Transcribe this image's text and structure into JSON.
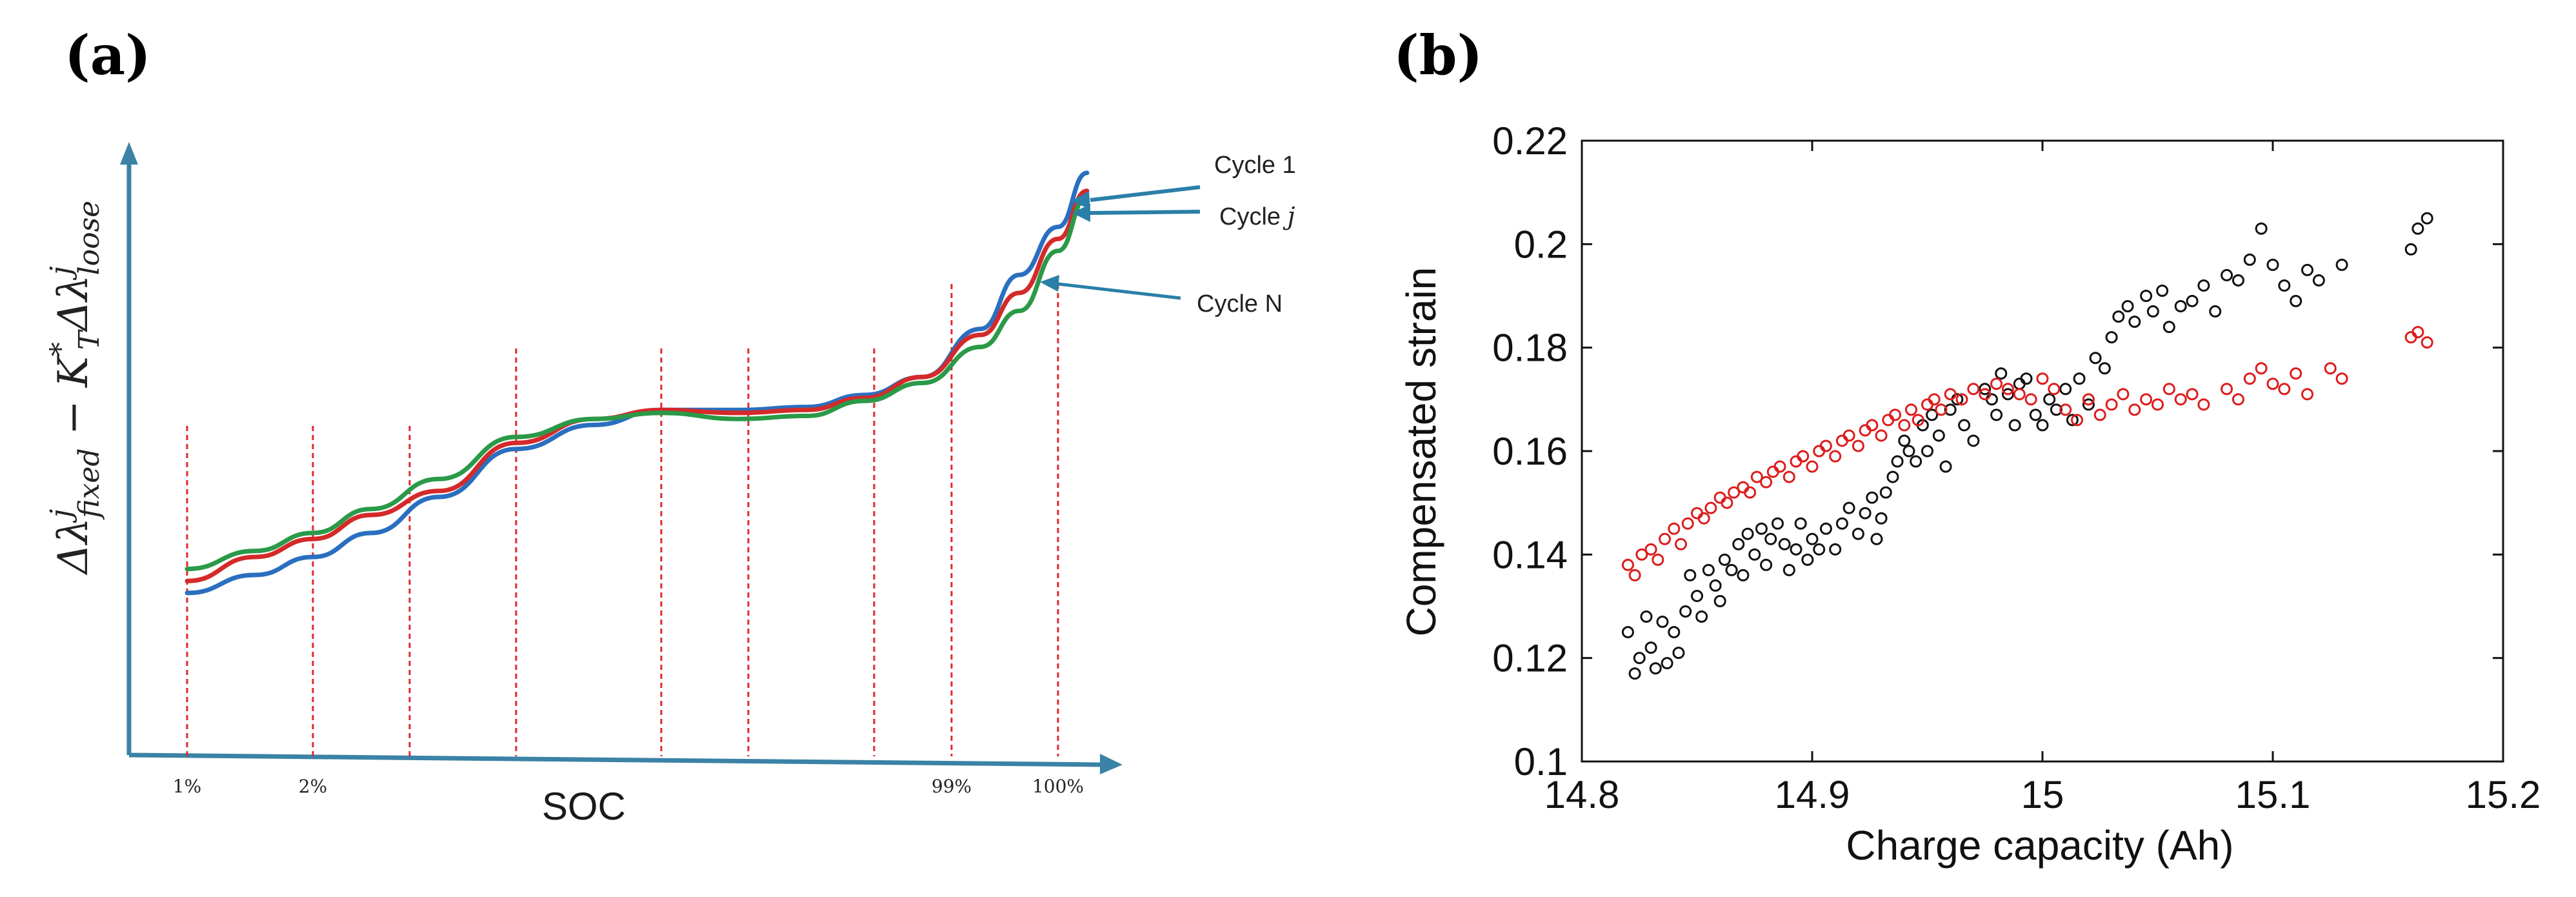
{
  "chart_data": [
    {
      "panel": "(a)",
      "type": "line",
      "xlabel": "SOC",
      "ylabel": "Δλfixed^j − K_T*Δλloose^j",
      "ylabel_parts": [
        "Δλ",
        "j",
        "fixed",
        " − K",
        "*",
        "T",
        "Δλ",
        "j",
        "loose"
      ],
      "soc_ticks": [
        {
          "label": "1%",
          "x": 0.06
        },
        {
          "label": "2%",
          "x": 0.19
        },
        {
          "label": "99%",
          "x": 0.85
        },
        {
          "label": "100%",
          "x": 0.96
        }
      ],
      "grid_x": [
        0.06,
        0.19,
        0.29,
        0.4,
        0.55,
        0.64,
        0.77,
        0.85,
        0.96
      ],
      "xlim": [
        0,
        1
      ],
      "ylim": [
        0,
        1
      ],
      "series": [
        {
          "name": "Cycle 1",
          "color": "#2a6fbf",
          "x": [
            0.06,
            0.13,
            0.19,
            0.25,
            0.32,
            0.4,
            0.48,
            0.55,
            0.63,
            0.7,
            0.76,
            0.82,
            0.88,
            0.92,
            0.96,
            0.99
          ],
          "y": [
            0.27,
            0.3,
            0.33,
            0.37,
            0.43,
            0.51,
            0.55,
            0.575,
            0.575,
            0.58,
            0.6,
            0.63,
            0.71,
            0.8,
            0.88,
            0.97
          ]
        },
        {
          "name": "Cycle j",
          "color": "#d42a2a",
          "x": [
            0.06,
            0.13,
            0.19,
            0.25,
            0.32,
            0.4,
            0.48,
            0.55,
            0.63,
            0.7,
            0.76,
            0.82,
            0.88,
            0.92,
            0.96,
            0.99
          ],
          "y": [
            0.29,
            0.33,
            0.36,
            0.4,
            0.44,
            0.52,
            0.56,
            0.575,
            0.57,
            0.575,
            0.595,
            0.63,
            0.7,
            0.77,
            0.86,
            0.94
          ]
        },
        {
          "name": "Cycle N",
          "color": "#2a9a48",
          "x": [
            0.06,
            0.13,
            0.19,
            0.25,
            0.32,
            0.4,
            0.48,
            0.55,
            0.63,
            0.7,
            0.76,
            0.82,
            0.88,
            0.92,
            0.96,
            0.99
          ],
          "y": [
            0.31,
            0.34,
            0.37,
            0.41,
            0.46,
            0.53,
            0.56,
            0.57,
            0.56,
            0.565,
            0.59,
            0.62,
            0.68,
            0.74,
            0.84,
            0.93
          ]
        }
      ],
      "annotations": [
        {
          "text": "Cycle 1",
          "target_series": "Cycle 1"
        },
        {
          "text": "Cycle ",
          "italic_suffix": "j",
          "target_series": "Cycle j"
        },
        {
          "text": "Cycle N",
          "target_series": "Cycle N"
        }
      ]
    },
    {
      "panel": "(b)",
      "type": "scatter",
      "xlabel": "Charge capacity (Ah)",
      "ylabel": "Compensated strain",
      "xlim": [
        14.8,
        15.2
      ],
      "ylim": [
        0.1,
        0.22
      ],
      "xticks": [
        14.8,
        14.9,
        15,
        15.1,
        15.2
      ],
      "xtick_labels": [
        "14.8",
        "14.9",
        "15",
        "15.1",
        "15.2"
      ],
      "yticks": [
        0.1,
        0.12,
        0.14,
        0.16,
        0.18,
        0.2,
        0.22
      ],
      "ytick_labels": [
        "0.1",
        "0.12",
        "0.14",
        "0.16",
        "0.18",
        "0.2",
        "0.22"
      ],
      "series": [
        {
          "name": "black",
          "color": "#111111",
          "marker": "circle-open",
          "points": [
            [
              14.82,
              0.125
            ],
            [
              14.823,
              0.117
            ],
            [
              14.825,
              0.12
            ],
            [
              14.828,
              0.128
            ],
            [
              14.83,
              0.122
            ],
            [
              14.832,
              0.118
            ],
            [
              14.835,
              0.127
            ],
            [
              14.837,
              0.119
            ],
            [
              14.84,
              0.125
            ],
            [
              14.842,
              0.121
            ],
            [
              14.845,
              0.129
            ],
            [
              14.847,
              0.136
            ],
            [
              14.85,
              0.132
            ],
            [
              14.852,
              0.128
            ],
            [
              14.855,
              0.137
            ],
            [
              14.858,
              0.134
            ],
            [
              14.86,
              0.131
            ],
            [
              14.862,
              0.139
            ],
            [
              14.865,
              0.137
            ],
            [
              14.868,
              0.142
            ],
            [
              14.87,
              0.136
            ],
            [
              14.872,
              0.144
            ],
            [
              14.875,
              0.14
            ],
            [
              14.878,
              0.145
            ],
            [
              14.88,
              0.138
            ],
            [
              14.882,
              0.143
            ],
            [
              14.885,
              0.146
            ],
            [
              14.888,
              0.142
            ],
            [
              14.89,
              0.137
            ],
            [
              14.893,
              0.141
            ],
            [
              14.895,
              0.146
            ],
            [
              14.898,
              0.139
            ],
            [
              14.9,
              0.143
            ],
            [
              14.903,
              0.141
            ],
            [
              14.906,
              0.145
            ],
            [
              14.91,
              0.141
            ],
            [
              14.913,
              0.146
            ],
            [
              14.916,
              0.149
            ],
            [
              14.92,
              0.144
            ],
            [
              14.923,
              0.148
            ],
            [
              14.926,
              0.151
            ],
            [
              14.928,
              0.143
            ],
            [
              14.93,
              0.147
            ],
            [
              14.932,
              0.152
            ],
            [
              14.935,
              0.155
            ],
            [
              14.937,
              0.158
            ],
            [
              14.94,
              0.162
            ],
            [
              14.942,
              0.16
            ],
            [
              14.945,
              0.158
            ],
            [
              14.948,
              0.165
            ],
            [
              14.95,
              0.16
            ],
            [
              14.952,
              0.167
            ],
            [
              14.955,
              0.163
            ],
            [
              14.958,
              0.157
            ],
            [
              14.96,
              0.168
            ],
            [
              14.963,
              0.17
            ],
            [
              14.966,
              0.165
            ],
            [
              14.97,
              0.162
            ],
            [
              14.975,
              0.172
            ],
            [
              14.978,
              0.17
            ],
            [
              14.98,
              0.167
            ],
            [
              14.982,
              0.175
            ],
            [
              14.985,
              0.171
            ],
            [
              14.988,
              0.165
            ],
            [
              14.99,
              0.173
            ],
            [
              14.993,
              0.174
            ],
            [
              14.997,
              0.167
            ],
            [
              15.0,
              0.165
            ],
            [
              15.003,
              0.17
            ],
            [
              15.006,
              0.168
            ],
            [
              15.01,
              0.172
            ],
            [
              15.013,
              0.166
            ],
            [
              15.016,
              0.174
            ],
            [
              15.02,
              0.169
            ],
            [
              15.023,
              0.178
            ],
            [
              15.027,
              0.176
            ],
            [
              15.03,
              0.182
            ],
            [
              15.033,
              0.186
            ],
            [
              15.037,
              0.188
            ],
            [
              15.04,
              0.185
            ],
            [
              15.045,
              0.19
            ],
            [
              15.048,
              0.187
            ],
            [
              15.052,
              0.191
            ],
            [
              15.055,
              0.184
            ],
            [
              15.06,
              0.188
            ],
            [
              15.065,
              0.189
            ],
            [
              15.07,
              0.192
            ],
            [
              15.075,
              0.187
            ],
            [
              15.08,
              0.194
            ],
            [
              15.085,
              0.193
            ],
            [
              15.09,
              0.197
            ],
            [
              15.095,
              0.203
            ],
            [
              15.1,
              0.196
            ],
            [
              15.105,
              0.192
            ],
            [
              15.11,
              0.189
            ],
            [
              15.115,
              0.195
            ],
            [
              15.12,
              0.193
            ],
            [
              15.13,
              0.196
            ],
            [
              15.16,
              0.199
            ],
            [
              15.163,
              0.203
            ],
            [
              15.167,
              0.205
            ]
          ]
        },
        {
          "name": "red",
          "color": "#dd1c1c",
          "marker": "circle-open",
          "points": [
            [
              14.82,
              0.138
            ],
            [
              14.823,
              0.136
            ],
            [
              14.826,
              0.14
            ],
            [
              14.83,
              0.141
            ],
            [
              14.833,
              0.139
            ],
            [
              14.836,
              0.143
            ],
            [
              14.84,
              0.145
            ],
            [
              14.843,
              0.142
            ],
            [
              14.846,
              0.146
            ],
            [
              14.85,
              0.148
            ],
            [
              14.853,
              0.147
            ],
            [
              14.856,
              0.149
            ],
            [
              14.86,
              0.151
            ],
            [
              14.863,
              0.15
            ],
            [
              14.866,
              0.152
            ],
            [
              14.87,
              0.153
            ],
            [
              14.873,
              0.152
            ],
            [
              14.876,
              0.155
            ],
            [
              14.88,
              0.154
            ],
            [
              14.883,
              0.156
            ],
            [
              14.886,
              0.157
            ],
            [
              14.89,
              0.155
            ],
            [
              14.893,
              0.158
            ],
            [
              14.896,
              0.159
            ],
            [
              14.9,
              0.157
            ],
            [
              14.903,
              0.16
            ],
            [
              14.906,
              0.161
            ],
            [
              14.91,
              0.159
            ],
            [
              14.913,
              0.162
            ],
            [
              14.916,
              0.163
            ],
            [
              14.92,
              0.161
            ],
            [
              14.923,
              0.164
            ],
            [
              14.926,
              0.165
            ],
            [
              14.93,
              0.163
            ],
            [
              14.933,
              0.166
            ],
            [
              14.936,
              0.167
            ],
            [
              14.94,
              0.165
            ],
            [
              14.943,
              0.168
            ],
            [
              14.946,
              0.166
            ],
            [
              14.95,
              0.169
            ],
            [
              14.953,
              0.17
            ],
            [
              14.956,
              0.168
            ],
            [
              14.96,
              0.171
            ],
            [
              14.965,
              0.17
            ],
            [
              14.97,
              0.172
            ],
            [
              14.975,
              0.171
            ],
            [
              14.98,
              0.173
            ],
            [
              14.985,
              0.172
            ],
            [
              14.99,
              0.171
            ],
            [
              14.995,
              0.17
            ],
            [
              15.0,
              0.174
            ],
            [
              15.005,
              0.172
            ],
            [
              15.01,
              0.168
            ],
            [
              15.015,
              0.166
            ],
            [
              15.02,
              0.17
            ],
            [
              15.025,
              0.167
            ],
            [
              15.03,
              0.169
            ],
            [
              15.035,
              0.171
            ],
            [
              15.04,
              0.168
            ],
            [
              15.045,
              0.17
            ],
            [
              15.05,
              0.169
            ],
            [
              15.055,
              0.172
            ],
            [
              15.06,
              0.17
            ],
            [
              15.065,
              0.171
            ],
            [
              15.07,
              0.169
            ],
            [
              15.08,
              0.172
            ],
            [
              15.085,
              0.17
            ],
            [
              15.09,
              0.174
            ],
            [
              15.095,
              0.176
            ],
            [
              15.1,
              0.173
            ],
            [
              15.105,
              0.172
            ],
            [
              15.11,
              0.175
            ],
            [
              15.115,
              0.171
            ],
            [
              15.125,
              0.176
            ],
            [
              15.13,
              0.174
            ],
            [
              15.16,
              0.182
            ],
            [
              15.163,
              0.183
            ],
            [
              15.167,
              0.181
            ]
          ]
        }
      ]
    }
  ],
  "colors": {
    "axis_a": "#3b82a6",
    "grid_a": "#e0282f",
    "axis_b": "#111111"
  }
}
